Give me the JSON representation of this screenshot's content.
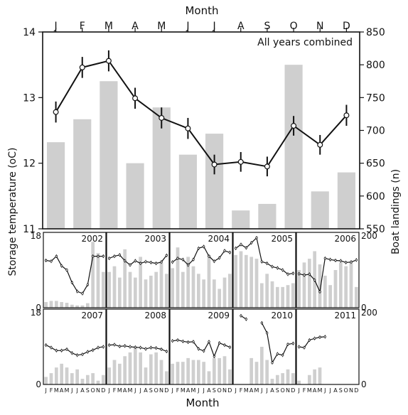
{
  "chart_data": [
    {
      "type": "bar",
      "annotation": "All years combined",
      "xlabel": "Month",
      "ylabel": "Storage temperature (oC)",
      "ylabel_right": "Boat landings (n)",
      "categories": [
        "J",
        "F",
        "M",
        "A",
        "M",
        "J",
        "J",
        "A",
        "S",
        "O",
        "N",
        "D"
      ],
      "y_ticks": [
        "11",
        "12",
        "13",
        "14"
      ],
      "y2_ticks": [
        "550",
        "600",
        "650",
        "700",
        "750",
        "800",
        "850"
      ],
      "ylim": [
        11,
        14
      ],
      "y2lim": [
        550,
        850
      ],
      "series": [
        {
          "type": "bar",
          "axis": "right",
          "values": [
            682,
            717,
            775,
            650,
            735,
            663,
            695,
            578,
            588,
            800,
            607,
            636
          ]
        },
        {
          "type": "line",
          "axis": "left",
          "values": [
            12.78,
            13.46,
            13.56,
            12.99,
            12.69,
            12.53,
            11.98,
            12.02,
            11.95,
            12.57,
            12.28,
            12.73
          ],
          "error": [
            0.16,
            0.16,
            0.16,
            0.16,
            0.16,
            0.16,
            0.15,
            0.15,
            0.15,
            0.15,
            0.15,
            0.16
          ]
        }
      ]
    },
    {
      "type": "bar",
      "xlabel": "Month",
      "month_tick_labels": [
        "J",
        "F",
        "M",
        "A",
        "M",
        "J",
        "J",
        "A",
        "S",
        "O",
        "N",
        "D"
      ],
      "left_ticks": [
        "0",
        "18"
      ],
      "right_ticks": [
        "0",
        "200"
      ],
      "ylim": [
        0,
        18
      ],
      "y2lim": [
        0,
        200
      ],
      "panels": [
        {
          "year": "2002",
          "landings": [
            15,
            18,
            18,
            15,
            13,
            8,
            6,
            6,
            12,
            175,
            145,
            95
          ],
          "temp": [
            11.3,
            11.1,
            12.3,
            10.0,
            9.0,
            6.0,
            3.9,
            3.4,
            5.5,
            12.3,
            12.3,
            12.3
          ]
        },
        {
          "year": "2003",
          "landings": [
            95,
            110,
            80,
            155,
            95,
            80,
            135,
            75,
            85,
            95,
            120,
            90
          ],
          "temp": [
            11.8,
            12.3,
            12.6,
            11.2,
            10.2,
            11.2,
            10.6,
            11.0,
            10.8,
            10.6,
            10.9,
            12.5
          ]
        },
        {
          "year": "2004",
          "landings": [
            105,
            160,
            95,
            135,
            110,
            90,
            75,
            140,
            75,
            50,
            80,
            90
          ],
          "temp": [
            10.9,
            11.8,
            11.5,
            10.2,
            11.5,
            14.2,
            14.6,
            12.3,
            11.1,
            11.9,
            13.6,
            13.2
          ]
        },
        {
          "year": "2005",
          "landings": [
            140,
            150,
            140,
            135,
            130,
            65,
            90,
            70,
            55,
            55,
            60,
            65
          ],
          "temp": [
            14.2,
            15.1,
            14.3,
            15.5,
            16.7,
            11.0,
            10.6,
            9.8,
            9.5,
            9.0,
            8.0,
            8.2
          ]
        },
        {
          "year": "2006",
          "landings": [
            100,
            120,
            130,
            150,
            115,
            85,
            60,
            100,
            120,
            110,
            120,
            55
          ],
          "temp": [
            8.1,
            7.8,
            8.0,
            6.6,
            3.8,
            11.8,
            11.5,
            11.3,
            11.2,
            10.8,
            10.9,
            11.4
          ]
        },
        {
          "year": "2007",
          "landings": [
            20,
            30,
            45,
            55,
            45,
            30,
            40,
            15,
            25,
            30,
            10,
            25
          ],
          "temp": [
            9.4,
            8.8,
            8.1,
            8.1,
            8.4,
            7.5,
            7.0,
            7.2,
            7.8,
            8.2,
            8.8,
            9.0
          ]
        },
        {
          "year": "2008",
          "landings": [
            45,
            65,
            55,
            75,
            85,
            100,
            85,
            45,
            80,
            85,
            65,
            35
          ],
          "temp": [
            9.4,
            9.5,
            9.1,
            9.2,
            9.0,
            8.9,
            8.8,
            8.5,
            8.8,
            8.7,
            8.4,
            7.9
          ]
        },
        {
          "year": "2009",
          "landings": [
            55,
            60,
            60,
            70,
            65,
            65,
            60,
            35,
            70,
            70,
            75,
            40
          ],
          "temp": [
            10.4,
            10.6,
            10.3,
            10.1,
            10.2,
            8.5,
            8.0,
            10.2,
            6.7,
            9.9,
            9.4,
            8.9
          ]
        },
        {
          "year": "2010",
          "landings": [
            0,
            0,
            0,
            70,
            60,
            100,
            65,
            15,
            25,
            30,
            40,
            30
          ],
          "temp": [
            null,
            16.4,
            15.6,
            null,
            null,
            14.7,
            12.3,
            5.2,
            7.3,
            7.0,
            9.6,
            9.8
          ]
        },
        {
          "year": "2011",
          "landings": [
            10,
            0,
            25,
            40,
            45,
            0,
            0,
            0,
            0,
            0,
            0,
            0
          ],
          "temp": [
            9.0,
            8.8,
            10.6,
            11.0,
            11.3,
            11.4,
            null,
            null,
            null,
            null,
            null,
            null
          ]
        }
      ]
    }
  ]
}
